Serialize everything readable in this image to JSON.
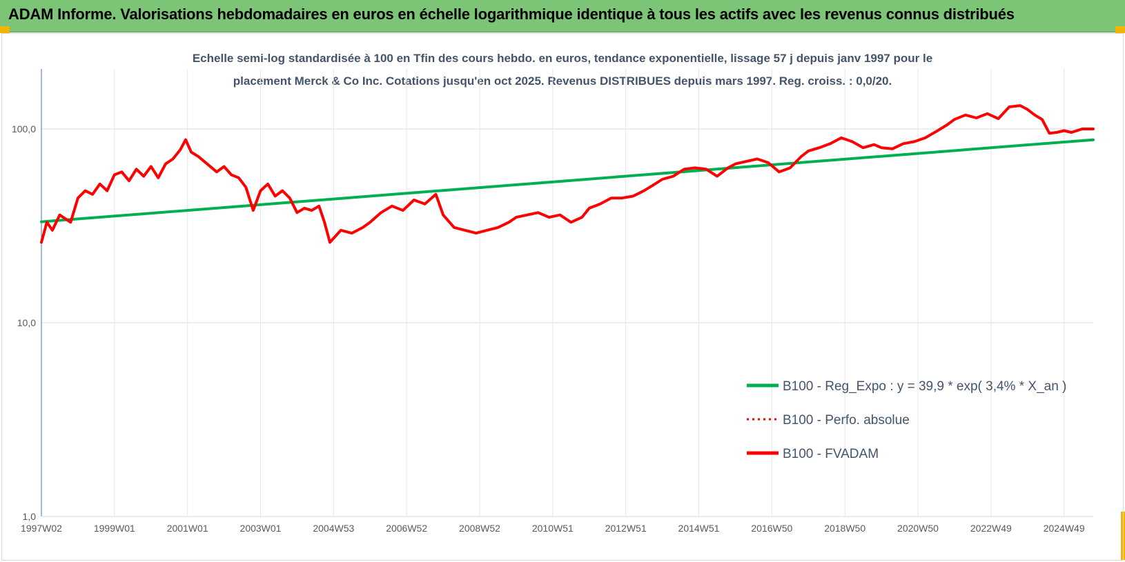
{
  "header": {
    "banner_title": "ADAM Informe. Valorisations hebdomadaires en euros en échelle logarithmique identique à tous les actifs avec les revenus connus distribués"
  },
  "colors": {
    "banner_bg": "#7cc576",
    "trend": "#00b050",
    "fvadam": "#ff0000",
    "perfo": "#ff0000",
    "gridline": "#d9d9d9",
    "axis_text": "#595959",
    "title_text": "#44546a"
  },
  "chart_data": {
    "type": "line",
    "title_lines": [
      "Echelle semi-log standardisée à 100 en Tfin des cours hebdo. en euros, tendance exponentielle, lissage 57 j depuis janv 1997 pour le",
      "placement Merck & Co Inc. Cotations jusqu'en oct 2025. Revenus DISTRIBUES depuis mars 1997. Reg. croiss. : 0,0/20."
    ],
    "y_scale": "log",
    "ylim": [
      1,
      180
    ],
    "y_ticks": [
      {
        "value": 1,
        "label": "1,0"
      },
      {
        "value": 10,
        "label": "10,0"
      },
      {
        "value": 100,
        "label": "100,0"
      }
    ],
    "x_range": [
      1997.0,
      2025.8
    ],
    "x_ticks": [
      {
        "value": 1997.0,
        "label": "1997W02"
      },
      {
        "value": 1999.0,
        "label": "1999W01"
      },
      {
        "value": 2001.0,
        "label": "2001W01"
      },
      {
        "value": 2003.0,
        "label": "2003W01"
      },
      {
        "value": 2005.0,
        "label": "2004W53"
      },
      {
        "value": 2007.0,
        "label": "2006W52"
      },
      {
        "value": 2009.0,
        "label": "2008W52"
      },
      {
        "value": 2011.0,
        "label": "2010W51"
      },
      {
        "value": 2013.0,
        "label": "2012W51"
      },
      {
        "value": 2015.0,
        "label": "2014W51"
      },
      {
        "value": 2017.0,
        "label": "2016W50"
      },
      {
        "value": 2019.0,
        "label": "2018W50"
      },
      {
        "value": 2021.0,
        "label": "2020W50"
      },
      {
        "value": 2023.0,
        "label": "2022W49"
      },
      {
        "value": 2025.0,
        "label": "2024W49"
      }
    ],
    "grid": true,
    "legend_position": "bottom-right",
    "series": [
      {
        "name": "B100 - Reg_Expo : y = 39,9 * exp( 3,4% *  X_an )",
        "style": "solid",
        "color": "#00b050",
        "x": [
          1997.0,
          2025.8
        ],
        "y": [
          33.2,
          87.9
        ]
      },
      {
        "name": "B100 - Perfo. absolue",
        "style": "dotted",
        "color": "#ff0000",
        "x": [],
        "y": []
      },
      {
        "name": "B100 - FVADAM",
        "style": "solid",
        "color": "#ff0000",
        "x": [
          1997.0,
          1997.15,
          1997.3,
          1997.5,
          1997.8,
          1998.0,
          1998.2,
          1998.4,
          1998.6,
          1998.8,
          1999.0,
          1999.2,
          1999.4,
          1999.6,
          1999.8,
          2000.0,
          2000.2,
          2000.4,
          2000.6,
          2000.8,
          2000.95,
          2001.1,
          2001.3,
          2001.5,
          2001.8,
          2002.0,
          2002.2,
          2002.4,
          2002.6,
          2002.8,
          2003.0,
          2003.2,
          2003.4,
          2003.6,
          2003.8,
          2004.0,
          2004.2,
          2004.4,
          2004.6,
          2004.75,
          2004.9,
          2005.2,
          2005.5,
          2005.8,
          2006.0,
          2006.3,
          2006.6,
          2006.9,
          2007.2,
          2007.5,
          2007.8,
          2008.0,
          2008.3,
          2008.6,
          2008.9,
          2009.2,
          2009.5,
          2009.8,
          2010.0,
          2010.3,
          2010.6,
          2010.9,
          2011.2,
          2011.5,
          2011.8,
          2012.0,
          2012.3,
          2012.6,
          2012.9,
          2013.2,
          2013.5,
          2013.8,
          2014.0,
          2014.3,
          2014.6,
          2014.9,
          2015.2,
          2015.5,
          2015.8,
          2016.0,
          2016.3,
          2016.6,
          2016.9,
          2017.2,
          2017.5,
          2017.8,
          2018.0,
          2018.3,
          2018.6,
          2018.9,
          2019.2,
          2019.5,
          2019.8,
          2020.0,
          2020.3,
          2020.6,
          2020.9,
          2021.2,
          2021.5,
          2021.8,
          2022.0,
          2022.3,
          2022.6,
          2022.9,
          2023.2,
          2023.5,
          2023.8,
          2024.0,
          2024.2,
          2024.4,
          2024.6,
          2024.8,
          2025.0,
          2025.2,
          2025.5,
          2025.8
        ],
        "y": [
          26,
          33,
          30,
          36,
          33,
          44,
          48,
          46,
          52,
          48,
          58,
          60,
          54,
          62,
          57,
          64,
          56,
          66,
          70,
          78,
          88,
          76,
          72,
          67,
          60,
          64,
          58,
          56,
          50,
          38,
          48,
          52,
          45,
          48,
          44,
          37,
          39,
          38,
          40,
          33,
          26,
          30,
          29,
          31,
          33,
          37,
          40,
          38,
          43,
          41,
          46,
          36,
          31,
          30,
          29,
          30,
          31,
          33,
          35,
          36,
          37,
          35,
          36,
          33,
          35,
          39,
          41,
          44,
          44,
          45,
          48,
          52,
          55,
          57,
          62,
          63,
          62,
          57,
          63,
          66,
          68,
          70,
          67,
          60,
          63,
          72,
          77,
          80,
          84,
          90,
          86,
          80,
          83,
          80,
          79,
          84,
          86,
          90,
          97,
          105,
          112,
          118,
          114,
          120,
          113,
          130,
          132,
          126,
          118,
          112,
          95,
          96,
          98,
          96,
          100,
          100
        ]
      }
    ]
  }
}
